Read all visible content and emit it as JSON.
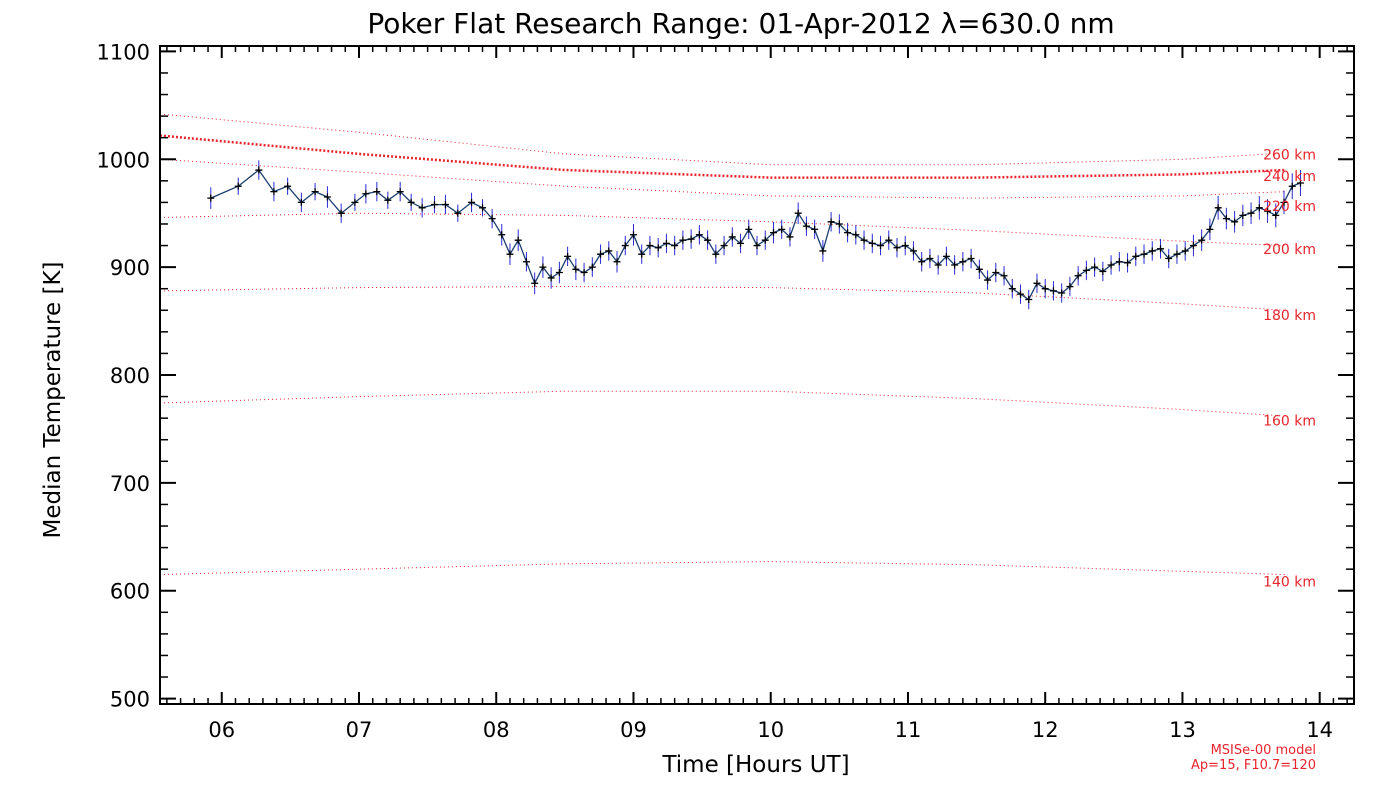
{
  "chart_data": {
    "type": "line",
    "title": "Poker Flat Research Range: 01-Apr-2012 λ=630.0 nm",
    "xlabel": "Time [Hours UT]",
    "ylabel": "Median Temperature [K]",
    "xlim": [
      5.55,
      14.25
    ],
    "ylim": [
      495,
      1105
    ],
    "x_ticks": [
      6,
      7,
      8,
      9,
      10,
      11,
      12,
      13,
      14
    ],
    "x_tick_labels": [
      "06",
      "07",
      "08",
      "09",
      "10",
      "11",
      "12",
      "13",
      "14"
    ],
    "y_ticks": [
      500,
      600,
      700,
      800,
      900,
      1000,
      1100
    ],
    "y_tick_labels": [
      "500",
      "600",
      "700",
      "800",
      "900",
      "1000",
      "1100"
    ],
    "grid": false,
    "colors": {
      "data_line": "#1a3d6e",
      "error_bars": "#2a2ad6",
      "markers": "#000000",
      "model": "#e8242c"
    },
    "series": [
      {
        "name": "",
        "x": [
          5.92,
          6.12,
          6.27,
          6.38,
          6.48,
          6.58,
          6.68,
          6.77,
          6.87,
          6.97,
          7.05,
          7.13,
          7.21,
          7.3,
          7.38,
          7.46,
          7.55,
          7.63,
          7.72,
          7.82,
          7.9,
          7.97,
          8.04,
          8.1,
          8.16,
          8.22,
          8.28,
          8.34,
          8.4,
          8.46,
          8.52,
          8.58,
          8.64,
          8.7,
          8.76,
          8.82,
          8.88,
          8.94,
          9.0,
          9.06,
          9.12,
          9.18,
          9.24,
          9.3,
          9.36,
          9.42,
          9.48,
          9.54,
          9.6,
          9.66,
          9.72,
          9.78,
          9.84,
          9.9,
          9.96,
          10.02,
          10.08,
          10.14,
          10.2,
          10.26,
          10.32,
          10.38,
          10.44,
          10.5,
          10.56,
          10.62,
          10.68,
          10.74,
          10.8,
          10.86,
          10.92,
          10.98,
          11.04,
          11.1,
          11.16,
          11.22,
          11.28,
          11.34,
          11.4,
          11.46,
          11.52,
          11.58,
          11.64,
          11.7,
          11.76,
          11.82,
          11.88,
          11.94,
          12.0,
          12.06,
          12.12,
          12.18,
          12.24,
          12.3,
          12.36,
          12.42,
          12.48,
          12.54,
          12.6,
          12.66,
          12.72,
          12.78,
          12.84,
          12.9,
          12.96,
          13.02,
          13.08,
          13.14,
          13.2,
          13.26,
          13.32,
          13.38,
          13.44,
          13.5,
          13.56,
          13.62,
          13.68,
          13.74,
          13.8,
          13.86
        ],
        "values": [
          964,
          975,
          990,
          970,
          975,
          960,
          970,
          965,
          950,
          960,
          968,
          970,
          962,
          970,
          960,
          955,
          958,
          958,
          950,
          960,
          955,
          945,
          930,
          912,
          925,
          905,
          885,
          900,
          890,
          895,
          910,
          898,
          895,
          900,
          912,
          915,
          905,
          920,
          930,
          912,
          920,
          918,
          922,
          920,
          925,
          926,
          930,
          925,
          912,
          920,
          928,
          922,
          935,
          920,
          925,
          932,
          935,
          928,
          950,
          938,
          935,
          915,
          942,
          940,
          932,
          930,
          925,
          922,
          920,
          925,
          918,
          920,
          915,
          905,
          908,
          902,
          910,
          902,
          905,
          908,
          898,
          888,
          895,
          892,
          880,
          875,
          870,
          885,
          880,
          878,
          876,
          882,
          892,
          897,
          900,
          896,
          902,
          905,
          904,
          910,
          912,
          915,
          917,
          908,
          912,
          915,
          920,
          925,
          935,
          955,
          945,
          942,
          948,
          950,
          955,
          952,
          948,
          960,
          975,
          978
        ],
        "errors": [
          10,
          8,
          9,
          9,
          8,
          9,
          8,
          10,
          9,
          8,
          9,
          9,
          8,
          9,
          8,
          9,
          8,
          9,
          8,
          9,
          8,
          9,
          10,
          10,
          10,
          9,
          10,
          10,
          10,
          10,
          9,
          10,
          9,
          9,
          9,
          9,
          10,
          9,
          10,
          9,
          9,
          9,
          9,
          9,
          9,
          9,
          9,
          9,
          9,
          9,
          9,
          9,
          9,
          9,
          9,
          10,
          9,
          9,
          10,
          9,
          9,
          10,
          9,
          9,
          9,
          9,
          9,
          9,
          9,
          9,
          9,
          9,
          9,
          9,
          9,
          9,
          9,
          9,
          9,
          9,
          9,
          9,
          9,
          9,
          9,
          9,
          9,
          9,
          9,
          9,
          9,
          9,
          9,
          9,
          9,
          9,
          9,
          9,
          9,
          9,
          9,
          9,
          9,
          9,
          9,
          9,
          10,
          10,
          10,
          11,
          10,
          10,
          10,
          10,
          11,
          11,
          11,
          11,
          12,
          12
        ]
      }
    ],
    "model_curves": [
      {
        "label": "260 km",
        "x": [
          5.55,
          7.0,
          8.5,
          10.0,
          11.5,
          13.0,
          13.75
        ],
        "values": [
          1042,
          1025,
          1005,
          995,
          995,
          1000,
          1006
        ],
        "thick": false
      },
      {
        "label": "240 km",
        "x": [
          5.55,
          7.0,
          8.5,
          10.0,
          11.5,
          13.0,
          13.75
        ],
        "values": [
          1022,
          1005,
          990,
          983,
          983,
          986,
          990
        ],
        "thick": true
      },
      {
        "label": "220 km",
        "x": [
          5.55,
          7.0,
          8.5,
          10.0,
          11.5,
          13.0,
          13.75
        ],
        "values": [
          1000,
          988,
          975,
          966,
          964,
          966,
          970
        ],
        "thick": false
      },
      {
        "label": "200 km",
        "x": [
          5.55,
          7.0,
          8.5,
          10.0,
          11.5,
          13.0,
          13.75
        ],
        "values": [
          946,
          950,
          948,
          942,
          934,
          924,
          920
        ],
        "thick": false
      },
      {
        "label": "180 km",
        "x": [
          5.55,
          7.0,
          8.5,
          10.0,
          11.5,
          13.0,
          13.75
        ],
        "values": [
          878,
          881,
          882,
          881,
          876,
          866,
          860
        ],
        "thick": false
      },
      {
        "label": "160 km",
        "x": [
          5.55,
          7.0,
          8.5,
          10.0,
          11.5,
          13.0,
          13.75
        ],
        "values": [
          774,
          780,
          785,
          785,
          778,
          768,
          762
        ],
        "thick": false
      },
      {
        "label": "140 km",
        "x": [
          5.55,
          7.0,
          8.5,
          10.0,
          11.5,
          13.0,
          13.75
        ],
        "values": [
          615,
          620,
          625,
          627,
          624,
          618,
          615
        ],
        "thick": false
      }
    ],
    "model_label_anchors": [
      1000,
      980,
      952,
      912,
      851,
      753,
      604
    ],
    "model_label_texts": [
      "260 km",
      "240 km",
      "220 km",
      "200 km",
      "180 km",
      "160 km",
      "140 km"
    ],
    "model_note_line1": "MSISe-00 model",
    "model_note_line2": "Ap=15, F10.7=120"
  }
}
